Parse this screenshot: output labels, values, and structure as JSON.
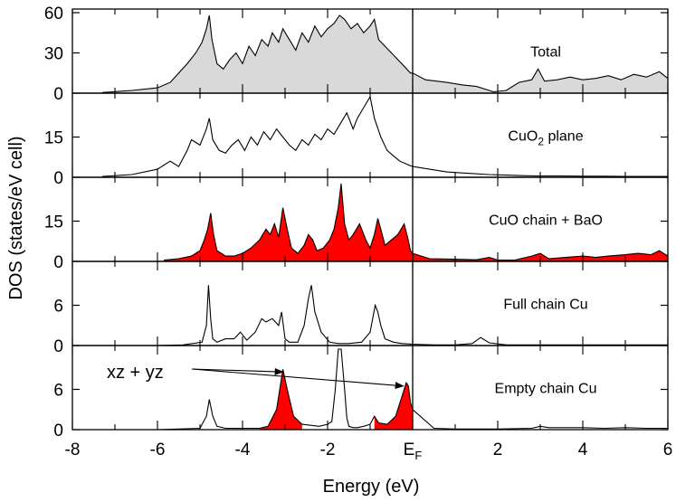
{
  "chart_data": {
    "type": "area",
    "x_axis": {
      "label": "Energy  (eV)",
      "range": [
        -8,
        6
      ],
      "ticks": [
        -8,
        -6,
        -4,
        -2,
        0,
        2,
        4,
        6
      ],
      "tick_labels": [
        "-8",
        "-6",
        "-4",
        "-2",
        "E",
        "2",
        "4",
        "6"
      ],
      "tick_label_sub": "F",
      "fermi_level": 0
    },
    "y_axis": {
      "label": "DOS  (states/eV cell)"
    },
    "panels": [
      {
        "label": "Total",
        "label_sub": "",
        "label_suffix": "",
        "ymax": 60,
        "ticks": [
          0,
          30,
          60
        ],
        "fill": "#d9d9d9",
        "x": [
          -7.3,
          -6.6,
          -6.0,
          -5.7,
          -5.5,
          -5.3,
          -5.1,
          -4.95,
          -4.85,
          -4.78,
          -4.72,
          -4.6,
          -4.45,
          -4.3,
          -4.15,
          -4.0,
          -3.85,
          -3.7,
          -3.55,
          -3.4,
          -3.3,
          -3.15,
          -3.05,
          -2.9,
          -2.75,
          -2.6,
          -2.45,
          -2.3,
          -2.15,
          -2.0,
          -1.85,
          -1.72,
          -1.6,
          -1.45,
          -1.3,
          -1.15,
          -1.0,
          -0.9,
          -0.8,
          -0.65,
          -0.5,
          -0.35,
          -0.2,
          -0.05,
          0.0,
          0.3,
          0.8,
          1.2,
          1.5,
          1.7,
          1.9,
          2.2,
          2.5,
          2.8,
          2.95,
          3.1,
          3.4,
          3.7,
          4.0,
          4.3,
          4.6,
          4.9,
          5.2,
          5.5,
          5.8,
          6.0
        ],
        "y": [
          0.5,
          2,
          4,
          8,
          15,
          22,
          30,
          38,
          48,
          58,
          40,
          22,
          18,
          25,
          30,
          22,
          35,
          28,
          40,
          35,
          45,
          38,
          48,
          40,
          32,
          45,
          38,
          50,
          42,
          48,
          52,
          58,
          55,
          48,
          52,
          45,
          50,
          55,
          40,
          35,
          30,
          25,
          20,
          15,
          15,
          10,
          8,
          6,
          5,
          3,
          1,
          2,
          8,
          10,
          18,
          9,
          10,
          12,
          10,
          11,
          13,
          10,
          14,
          12,
          16,
          11
        ]
      },
      {
        "label": "CuO",
        "label_sub": "2",
        "label_suffix": " plane",
        "ymax": 30,
        "ticks": [
          0,
          15
        ],
        "fill": "none",
        "x": [
          -7.3,
          -6.6,
          -6.0,
          -5.7,
          -5.5,
          -5.3,
          -5.2,
          -5.0,
          -4.85,
          -4.78,
          -4.7,
          -4.55,
          -4.4,
          -4.25,
          -4.1,
          -3.95,
          -3.8,
          -3.65,
          -3.5,
          -3.35,
          -3.2,
          -3.05,
          -2.9,
          -2.75,
          -2.6,
          -2.45,
          -2.3,
          -2.15,
          -2.0,
          -1.85,
          -1.7,
          -1.55,
          -1.4,
          -1.3,
          -1.15,
          -1.0,
          -0.9,
          -0.75,
          -0.6,
          -0.45,
          -0.3,
          -0.15,
          0.0,
          0.4,
          0.8,
          1.3,
          1.8,
          2.2,
          2.6,
          3.0,
          3.5,
          4.0,
          4.5,
          5.0,
          5.5,
          6.0
        ],
        "y": [
          0.3,
          1,
          3,
          6,
          4,
          10,
          14,
          12,
          18,
          22,
          14,
          10,
          9,
          12,
          14,
          10,
          15,
          12,
          17,
          14,
          18,
          15,
          12,
          10,
          14,
          12,
          16,
          14,
          18,
          16,
          20,
          24,
          18,
          22,
          26,
          30,
          22,
          15,
          10,
          8,
          6,
          5,
          4,
          3,
          2,
          1.5,
          1,
          0.8,
          0.6,
          0.5,
          0.5,
          0.4,
          0.4,
          0.3,
          0.3,
          0.3
        ]
      },
      {
        "label": "CuO chain + BaO",
        "label_sub": "",
        "label_suffix": "",
        "ymax": 30,
        "ticks": [
          0,
          15
        ],
        "fill": "#ff0000",
        "x": [
          -5.85,
          -5.5,
          -5.2,
          -5.0,
          -4.9,
          -4.82,
          -4.75,
          -4.68,
          -4.6,
          -4.4,
          -4.2,
          -4.0,
          -3.8,
          -3.6,
          -3.45,
          -3.35,
          -3.25,
          -3.15,
          -3.05,
          -2.95,
          -2.85,
          -2.7,
          -2.55,
          -2.45,
          -2.35,
          -2.25,
          -2.1,
          -1.95,
          -1.85,
          -1.75,
          -1.68,
          -1.6,
          -1.5,
          -1.4,
          -1.25,
          -1.1,
          -1.0,
          -0.9,
          -0.82,
          -0.75,
          -0.65,
          -0.5,
          -0.35,
          -0.2,
          -0.12,
          -0.05,
          0.0,
          0.4,
          1.0,
          1.5,
          1.8,
          2.0,
          2.4,
          2.8,
          3.0,
          3.2,
          3.6,
          4.0,
          4.3,
          4.6,
          5.0,
          5.3,
          5.6,
          5.8,
          6.0
        ],
        "y": [
          0.5,
          1,
          2,
          4,
          8,
          12,
          18,
          10,
          4,
          2,
          2,
          3,
          5,
          8,
          12,
          10,
          14,
          9,
          20,
          12,
          5,
          3,
          6,
          10,
          8,
          4,
          5,
          8,
          12,
          20,
          29,
          14,
          8,
          10,
          14,
          8,
          5,
          10,
          16,
          12,
          6,
          8,
          10,
          14,
          9,
          4,
          3,
          1,
          0.8,
          0.6,
          1.5,
          0.5,
          0.5,
          2,
          3,
          1,
          1.5,
          2,
          1.5,
          2,
          2.5,
          3,
          2.5,
          4,
          2
        ]
      },
      {
        "label": "Full chain Cu",
        "label_sub": "",
        "label_suffix": "",
        "ymax": 12,
        "ticks": [
          0,
          6
        ],
        "fill": "none",
        "x": [
          -6.0,
          -5.4,
          -4.95,
          -4.85,
          -4.8,
          -4.75,
          -4.7,
          -4.6,
          -4.4,
          -4.2,
          -4.05,
          -3.9,
          -3.7,
          -3.55,
          -3.45,
          -3.3,
          -3.15,
          -3.08,
          -3.0,
          -2.9,
          -2.7,
          -2.55,
          -2.45,
          -2.38,
          -2.3,
          -2.15,
          -1.95,
          -1.75,
          -1.5,
          -1.2,
          -1.0,
          -0.88,
          -0.82,
          -0.75,
          -0.65,
          -0.45,
          -0.25,
          0.0,
          0.5,
          1.0,
          1.4,
          1.6,
          1.8,
          2.2,
          3.0,
          4.0,
          5.0,
          6.0
        ],
        "y": [
          0,
          0.1,
          0.5,
          3,
          9,
          4,
          1,
          0.5,
          1,
          1,
          2,
          0.8,
          2,
          4,
          3.5,
          4,
          3,
          5,
          1,
          0.5,
          0.5,
          3,
          7,
          9,
          5,
          2,
          0.5,
          0.3,
          0.3,
          0.5,
          2,
          6,
          5,
          3,
          1,
          0.5,
          0.3,
          0.2,
          0.1,
          0.1,
          0.3,
          1.2,
          0.4,
          0.1,
          0.1,
          0.1,
          0.1,
          0.1
        ]
      },
      {
        "label": "Empty chain Cu",
        "label_sub": "",
        "label_suffix": "",
        "ymax": 12,
        "ticks": [
          0,
          6
        ],
        "fill": "none",
        "x": [
          -6.0,
          -5.0,
          -4.85,
          -4.78,
          -4.7,
          -4.6,
          -4.4,
          -3.6,
          -3.4,
          -3.2,
          -3.1,
          -3.05,
          -2.95,
          -2.8,
          -2.6,
          -2.2,
          -2.0,
          -1.95,
          -1.9,
          -1.82,
          -1.75,
          -1.68,
          -1.6,
          -1.55,
          -1.5,
          -1.4,
          -1.3,
          -1.15,
          -1.0,
          -0.9,
          -0.85,
          -0.8,
          -0.6,
          -0.4,
          -0.25,
          -0.15,
          -0.1,
          -0.05,
          0.0,
          0.5,
          1.0,
          2.0,
          2.8,
          3.0,
          3.2,
          3.5,
          4.0,
          4.5,
          5.0,
          5.5,
          6.0
        ],
        "y": [
          0,
          0.2,
          2,
          4.5,
          2,
          0.5,
          0.2,
          0.2,
          0.5,
          3,
          7,
          9,
          6,
          2,
          0.8,
          0.5,
          0.8,
          1,
          1.2,
          6,
          12,
          12,
          6,
          1.8,
          0.5,
          0.3,
          0.3,
          0.5,
          0.8,
          2,
          1.5,
          1,
          0.8,
          2,
          5,
          7,
          6.5,
          4,
          3,
          0.2,
          0.1,
          0.1,
          0.2,
          0.5,
          0.3,
          0.3,
          0.3,
          0.2,
          0.3,
          0.2,
          0.2
        ]
      }
    ],
    "highlights": {
      "fill": "#ff0000",
      "regions": [
        {
          "x": [
            -3.6,
            -3.4,
            -3.2,
            -3.1,
            -3.05,
            -2.95,
            -2.8,
            -2.6
          ],
          "y": [
            0.2,
            0.5,
            3,
            7,
            9,
            6,
            2,
            0.8
          ]
        },
        {
          "x": [
            -0.9,
            -0.85,
            -0.8,
            -0.6,
            -0.4,
            -0.25,
            -0.15,
            -0.1,
            -0.05,
            0.0
          ],
          "y": [
            2,
            1.5,
            1,
            0.8,
            2,
            5,
            7,
            6.5,
            4,
            3
          ]
        }
      ]
    },
    "annotation": {
      "text": "xz + yz",
      "targets": [
        [
          -3.05,
          8.6
        ],
        [
          -0.22,
          6.5
        ]
      ]
    }
  }
}
